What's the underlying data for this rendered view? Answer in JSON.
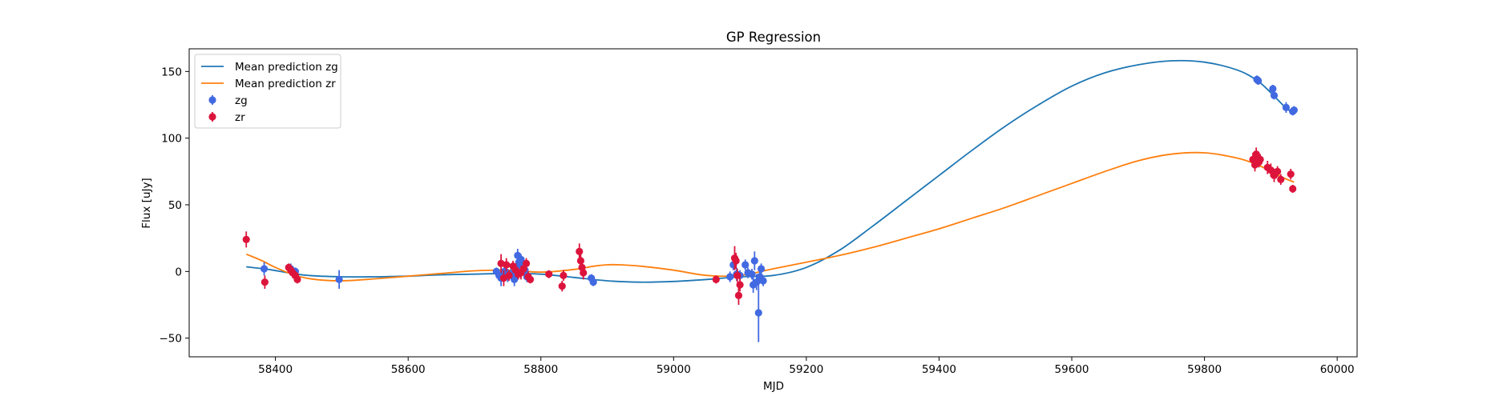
{
  "chart_data": {
    "type": "line+scatter",
    "title": "GP Regression",
    "xlabel": "MJD",
    "ylabel": "Flux [uJy]",
    "xlim": [
      58270,
      60030
    ],
    "ylim": [
      -64,
      167
    ],
    "xticks": [
      58400,
      58600,
      58800,
      59000,
      59200,
      59400,
      59600,
      59800,
      60000
    ],
    "yticks": [
      -50,
      0,
      50,
      100,
      150
    ],
    "grid": false,
    "legend": {
      "placement": "upper-left"
    },
    "series": [
      {
        "name": "Mean prediction zg",
        "kind": "line",
        "color": "#1f77b4",
        "x": [
          58356,
          58390,
          58420,
          58450,
          58500,
          58550,
          58600,
          58650,
          58700,
          58750,
          58800,
          58850,
          58900,
          58950,
          59000,
          59050,
          59100,
          59150,
          59200,
          59250,
          59300,
          59350,
          59400,
          59450,
          59500,
          59550,
          59600,
          59650,
          59700,
          59750,
          59800,
          59850,
          59880,
          59900,
          59920,
          59935
        ],
        "y": [
          3.5,
          1.5,
          -1,
          -3,
          -4,
          -4,
          -3.5,
          -2.5,
          -2,
          -1.5,
          -2,
          -4.5,
          -7,
          -8,
          -7.5,
          -6,
          -4,
          -3,
          3,
          16,
          34,
          53,
          72,
          91,
          109,
          125,
          139,
          149,
          155,
          158,
          157,
          151,
          143,
          134,
          124,
          118
        ]
      },
      {
        "name": "Mean prediction zr",
        "kind": "line",
        "color": "#ff7f0e",
        "x": [
          58356,
          58380,
          58400,
          58430,
          58460,
          58500,
          58550,
          58600,
          58650,
          58700,
          58750,
          58800,
          58850,
          58880,
          58900,
          58920,
          58950,
          59000,
          59050,
          59100,
          59150,
          59200,
          59250,
          59300,
          59350,
          59400,
          59450,
          59500,
          59550,
          59600,
          59650,
          59700,
          59750,
          59800,
          59850,
          59880,
          59900,
          59920,
          59935
        ],
        "y": [
          13,
          8,
          3,
          -3,
          -6,
          -7,
          -5.5,
          -3.5,
          -1.5,
          0.5,
          1,
          -0.5,
          1.5,
          4,
          5,
          5,
          4,
          1,
          -3,
          -3,
          2,
          7,
          12,
          18,
          25,
          32,
          40,
          48,
          57,
          66,
          75,
          83,
          88,
          89,
          85,
          80,
          75,
          70,
          67
        ]
      },
      {
        "name": "zg",
        "kind": "errorbar",
        "color": "#4169e1",
        "x": [
          58383,
          58423,
          58430,
          58496,
          58733,
          58737,
          58740,
          58745,
          58750,
          58755,
          58760,
          58763,
          58765,
          58767,
          58770,
          58773,
          58776,
          58779,
          58876,
          58879,
          59085,
          59090,
          59095,
          59100,
          59108,
          59112,
          59118,
          59120,
          59122,
          59125,
          59128,
          59130,
          59132,
          59135,
          59879,
          59881,
          59903,
          59905,
          59923,
          59933,
          59935
        ],
        "y": [
          2,
          2,
          0,
          -6,
          0,
          -3,
          -5,
          0,
          -3,
          -2,
          -6,
          2,
          12,
          7,
          9,
          4,
          1,
          -4,
          -5,
          -8,
          -4,
          5,
          -2,
          -3,
          5,
          -1,
          -2,
          -10,
          8,
          -8,
          -31,
          -4,
          2,
          -7,
          144,
          143,
          137,
          132,
          123,
          120,
          121
        ],
        "err": [
          5,
          4,
          3,
          7,
          3,
          4,
          6,
          4,
          5,
          4,
          5,
          4,
          5,
          5,
          4,
          4,
          4,
          4,
          3,
          3,
          4,
          4,
          5,
          4,
          4,
          4,
          4,
          6,
          7,
          6,
          22,
          5,
          4,
          4,
          3,
          3,
          3,
          3,
          4,
          3,
          3
        ]
      },
      {
        "name": "zr",
        "kind": "errorbar",
        "color": "#dc143c",
        "x": [
          58356,
          58384,
          58420,
          58423,
          58426,
          58430,
          58433,
          58740,
          58744,
          58748,
          58752,
          58758,
          58762,
          58766,
          58770,
          58774,
          58778,
          58781,
          58784,
          58812,
          58832,
          58834,
          58858,
          58860,
          58862,
          58864,
          59064,
          59092,
          59094,
          59096,
          59098,
          59100,
          59873,
          59876,
          59878,
          59880,
          59882,
          59884,
          59895,
          59900,
          59905,
          59910,
          59915,
          59930,
          59933
        ],
        "y": [
          24,
          -8,
          3,
          1,
          -1,
          -3,
          -6,
          6,
          -5,
          5,
          -3,
          4,
          1,
          -2,
          -1,
          2,
          6,
          -4,
          -6,
          -2,
          -11,
          -3,
          15,
          8,
          3,
          -1,
          -6,
          10,
          8,
          -3,
          -18,
          -10,
          84,
          80,
          88,
          86,
          82,
          84,
          78,
          76,
          72,
          75,
          69,
          73,
          62
        ],
        "err": [
          6,
          5,
          3,
          3,
          4,
          3,
          3,
          7,
          6,
          5,
          4,
          4,
          5,
          4,
          5,
          5,
          4,
          4,
          3,
          3,
          4,
          4,
          6,
          5,
          5,
          5,
          3,
          9,
          6,
          5,
          7,
          5,
          5,
          5,
          5,
          4,
          4,
          4,
          5,
          5,
          5,
          4,
          4,
          4,
          3
        ]
      }
    ]
  }
}
